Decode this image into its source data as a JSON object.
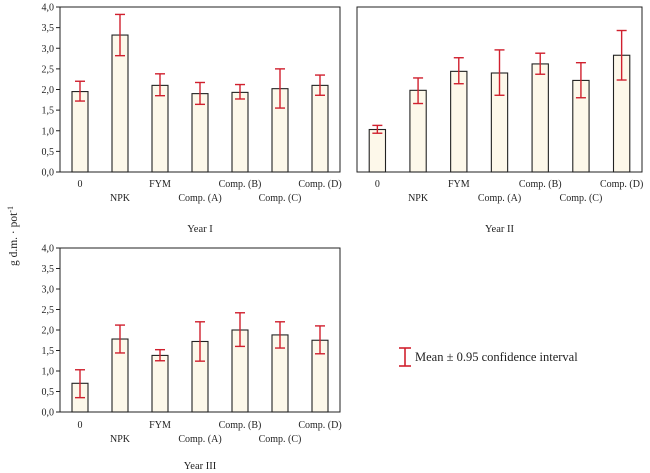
{
  "figure": {
    "ylabel_main": "g d.m. · pot",
    "ylabel_sup": "-1",
    "legend": {
      "text": "Mean ± 0.95 confidence interval",
      "color": "#d0202e"
    },
    "colors": {
      "bar_fill": "#fdf8ea",
      "bar_stroke": "#222222",
      "error": "#d0202e"
    }
  },
  "chart_data": [
    {
      "type": "bar",
      "title": "",
      "xlabel": "Year I",
      "ylabel": "g d.m. · pot-1",
      "ylim": [
        0,
        4
      ],
      "yticks": [
        "0,0",
        "0,5",
        "1,0",
        "1,5",
        "2,0",
        "2,5",
        "3,0",
        "3,5",
        "4,0"
      ],
      "categories": [
        "0",
        "NPK",
        "FYM",
        "Comp. (A)",
        "Comp. (B)",
        "Comp. (C)",
        "Comp. (D)"
      ],
      "values": [
        1.95,
        3.32,
        2.1,
        1.9,
        1.93,
        2.02,
        2.1
      ],
      "ci_low": [
        1.72,
        2.82,
        1.85,
        1.64,
        1.77,
        1.55,
        1.86
      ],
      "ci_high": [
        2.2,
        3.82,
        2.38,
        2.17,
        2.12,
        2.5,
        2.35
      ],
      "grid": false
    },
    {
      "type": "bar",
      "title": "",
      "xlabel": "Year II",
      "ylabel": "g d.m. · pot-1",
      "ylim": [
        0,
        4
      ],
      "yticks": [],
      "categories": [
        "0",
        "NPK",
        "FYM",
        "Comp. (A)",
        "Comp. (B)",
        "Comp. (C)",
        "Comp. (D)"
      ],
      "values": [
        1.03,
        1.98,
        2.44,
        2.4,
        2.62,
        2.22,
        2.83
      ],
      "ci_low": [
        0.94,
        1.66,
        2.14,
        1.86,
        2.37,
        1.8,
        2.23
      ],
      "ci_high": [
        1.13,
        2.28,
        2.77,
        2.96,
        2.88,
        2.65,
        3.43
      ],
      "grid": false
    },
    {
      "type": "bar",
      "title": "",
      "xlabel": "Year III",
      "ylabel": "g d.m. · pot-1",
      "ylim": [
        0,
        4
      ],
      "yticks": [
        "0,0",
        "0,5",
        "1,0",
        "1,5",
        "2,0",
        "2,5",
        "3,0",
        "3,5",
        "4,0"
      ],
      "categories": [
        "0",
        "NPK",
        "FYM",
        "Comp. (A)",
        "Comp. (B)",
        "Comp. (C)",
        "Comp. (D)"
      ],
      "values": [
        0.7,
        1.78,
        1.38,
        1.72,
        2.0,
        1.88,
        1.75
      ],
      "ci_low": [
        0.35,
        1.44,
        1.25,
        1.24,
        1.6,
        1.56,
        1.42
      ],
      "ci_high": [
        1.03,
        2.12,
        1.52,
        2.2,
        2.42,
        2.2,
        2.1
      ],
      "grid": false
    }
  ]
}
